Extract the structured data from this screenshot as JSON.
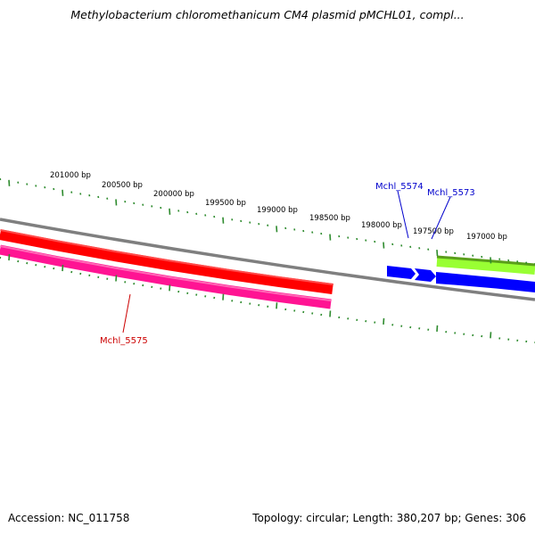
{
  "title": "Methylobacterium chloromethanicum CM4 plasmid pMCHL01, compl...",
  "footer": {
    "accession": "Accession: NC_011758",
    "summary": "Topology: circular; Length: 380,207 bp; Genes: 306"
  },
  "colors": {
    "tick": "#2e8b2e",
    "backbone": "#7f7f7f",
    "forward_gene": "#ff0000",
    "reverse_gene": "#ff1493",
    "blue_gene": "#0000ff",
    "green_gene": "#99ff33",
    "label_blue": "#0000cc",
    "label_red": "#cc0000"
  },
  "tick_labels": [
    "201000 bp",
    "200500 bp",
    "200000 bp",
    "199500 bp",
    "199000 bp",
    "198500 bp",
    "198000 bp",
    "197500 bp",
    "197000 bp"
  ],
  "gene_labels": {
    "mchl_5574": "Mchl_5574",
    "mchl_5573": "Mchl_5573",
    "mchl_5575": "Mchl_5575"
  }
}
